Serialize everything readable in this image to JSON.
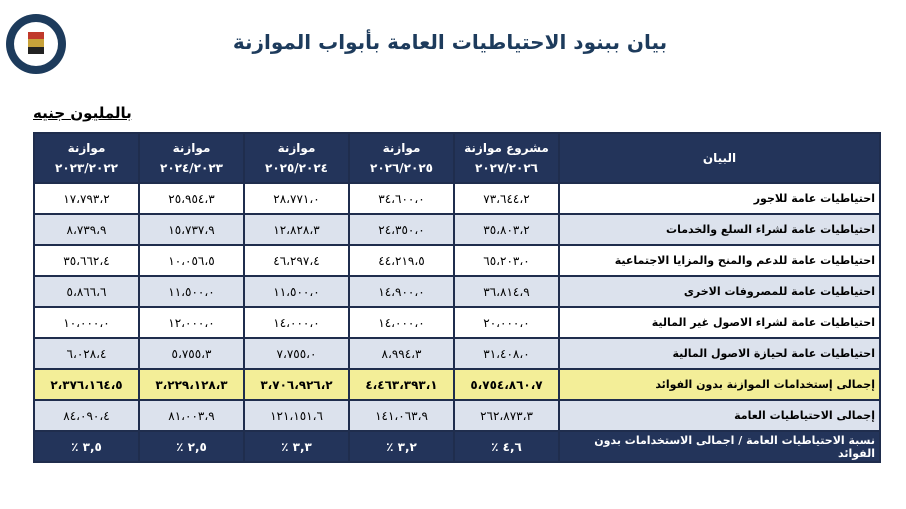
{
  "header": {
    "title": "بيان ببنود الاحتياطيات العامة بأبواب الموازنة",
    "unit": "بالمليون جنيه"
  },
  "table": {
    "columns": [
      {
        "title": "البيان"
      },
      {
        "title": "مشروع موازنة",
        "year": "٢٠٢٧/٢٠٢٦"
      },
      {
        "title": "موازنة",
        "year": "٢٠٢٦/٢٠٢٥"
      },
      {
        "title": "موازنة",
        "year": "٢٠٢٥/٢٠٢٤"
      },
      {
        "title": "موازنة",
        "year": "٢٠٢٤/٢٠٢٣"
      },
      {
        "title": "موازنة",
        "year": "٢٠٢٣/٢٠٢٢"
      }
    ],
    "rows": [
      [
        "احتياطيات عامة للاجور",
        "٧٣،٦٤٤،٢",
        "٣٤،٦٠٠،٠",
        "٢٨،٧٧١،٠",
        "٢٥،٩٥٤،٣",
        "١٧،٧٩٣،٢"
      ],
      [
        "احتياطيات عامة لشراء السلع والخدمات",
        "٣٥،٨٠٣،٢",
        "٢٤،٣٥٠،٠",
        "١٢،٨٢٨،٣",
        "١٥،٧٣٧،٩",
        "٨،٧٣٩،٩"
      ],
      [
        "احتياطيات عامة للدعم والمنح والمزايا الاجتماعية",
        "٦٥،٢٠٣،٠",
        "٤٤،٢١٩،٥",
        "٤٦،٢٩٧،٤",
        "١٠،٠٥٦،٥",
        "٣٥،٦٦٢،٤"
      ],
      [
        "احتياطيات عامة للمصروفات الاخرى",
        "٣٦،٨١٤،٩",
        "١٤،٩٠٠،٠",
        "١١،٥٠٠،٠",
        "١١،٥٠٠،٠",
        "٥،٨٦٦،٦"
      ],
      [
        "احتياطيات عامة لشراء الاصول غير المالية",
        "٢٠،٠٠٠،٠",
        "١٤،٠٠٠،٠",
        "١٤،٠٠٠،٠",
        "١٢،٠٠٠،٠",
        "١٠،٠٠٠،٠"
      ],
      [
        "احتياطيات عامة لحيازة الاصول المالية",
        "٣١،٤٠٨،٠",
        "٨،٩٩٤،٣",
        "٧،٧٥٥،٠",
        "٥،٧٥٥،٣",
        "٦،٠٢٨،٤"
      ],
      [
        "إجمالى إستخدامات الموازنة بدون الفوائد",
        "٥،٧٥٤،٨٦٠،٧",
        "٤،٤٦٣،٣٩٣،١",
        "٣،٧٠٦،٩٢٦،٢",
        "٣،٢٢٩،١٢٨،٣",
        "٢،٣٧٦،١٦٤،٥"
      ],
      [
        "إجمالى الاحتياطيات العامة",
        "٢٦٢،٨٧٣،٣",
        "١٤١،٠٦٣،٩",
        "١٢١،١٥١،٦",
        "٨١،٠٠٣،٩",
        "٨٤،٠٩٠،٤"
      ],
      [
        "نسبة الاحتياطيات العامة / اجمالى الاستخدامات بدون الفوائد",
        "٤,٦ ٪",
        "٣,٢ ٪",
        "٣,٣ ٪",
        "٢,٥ ٪",
        "٣,٥ ٪"
      ]
    ]
  }
}
